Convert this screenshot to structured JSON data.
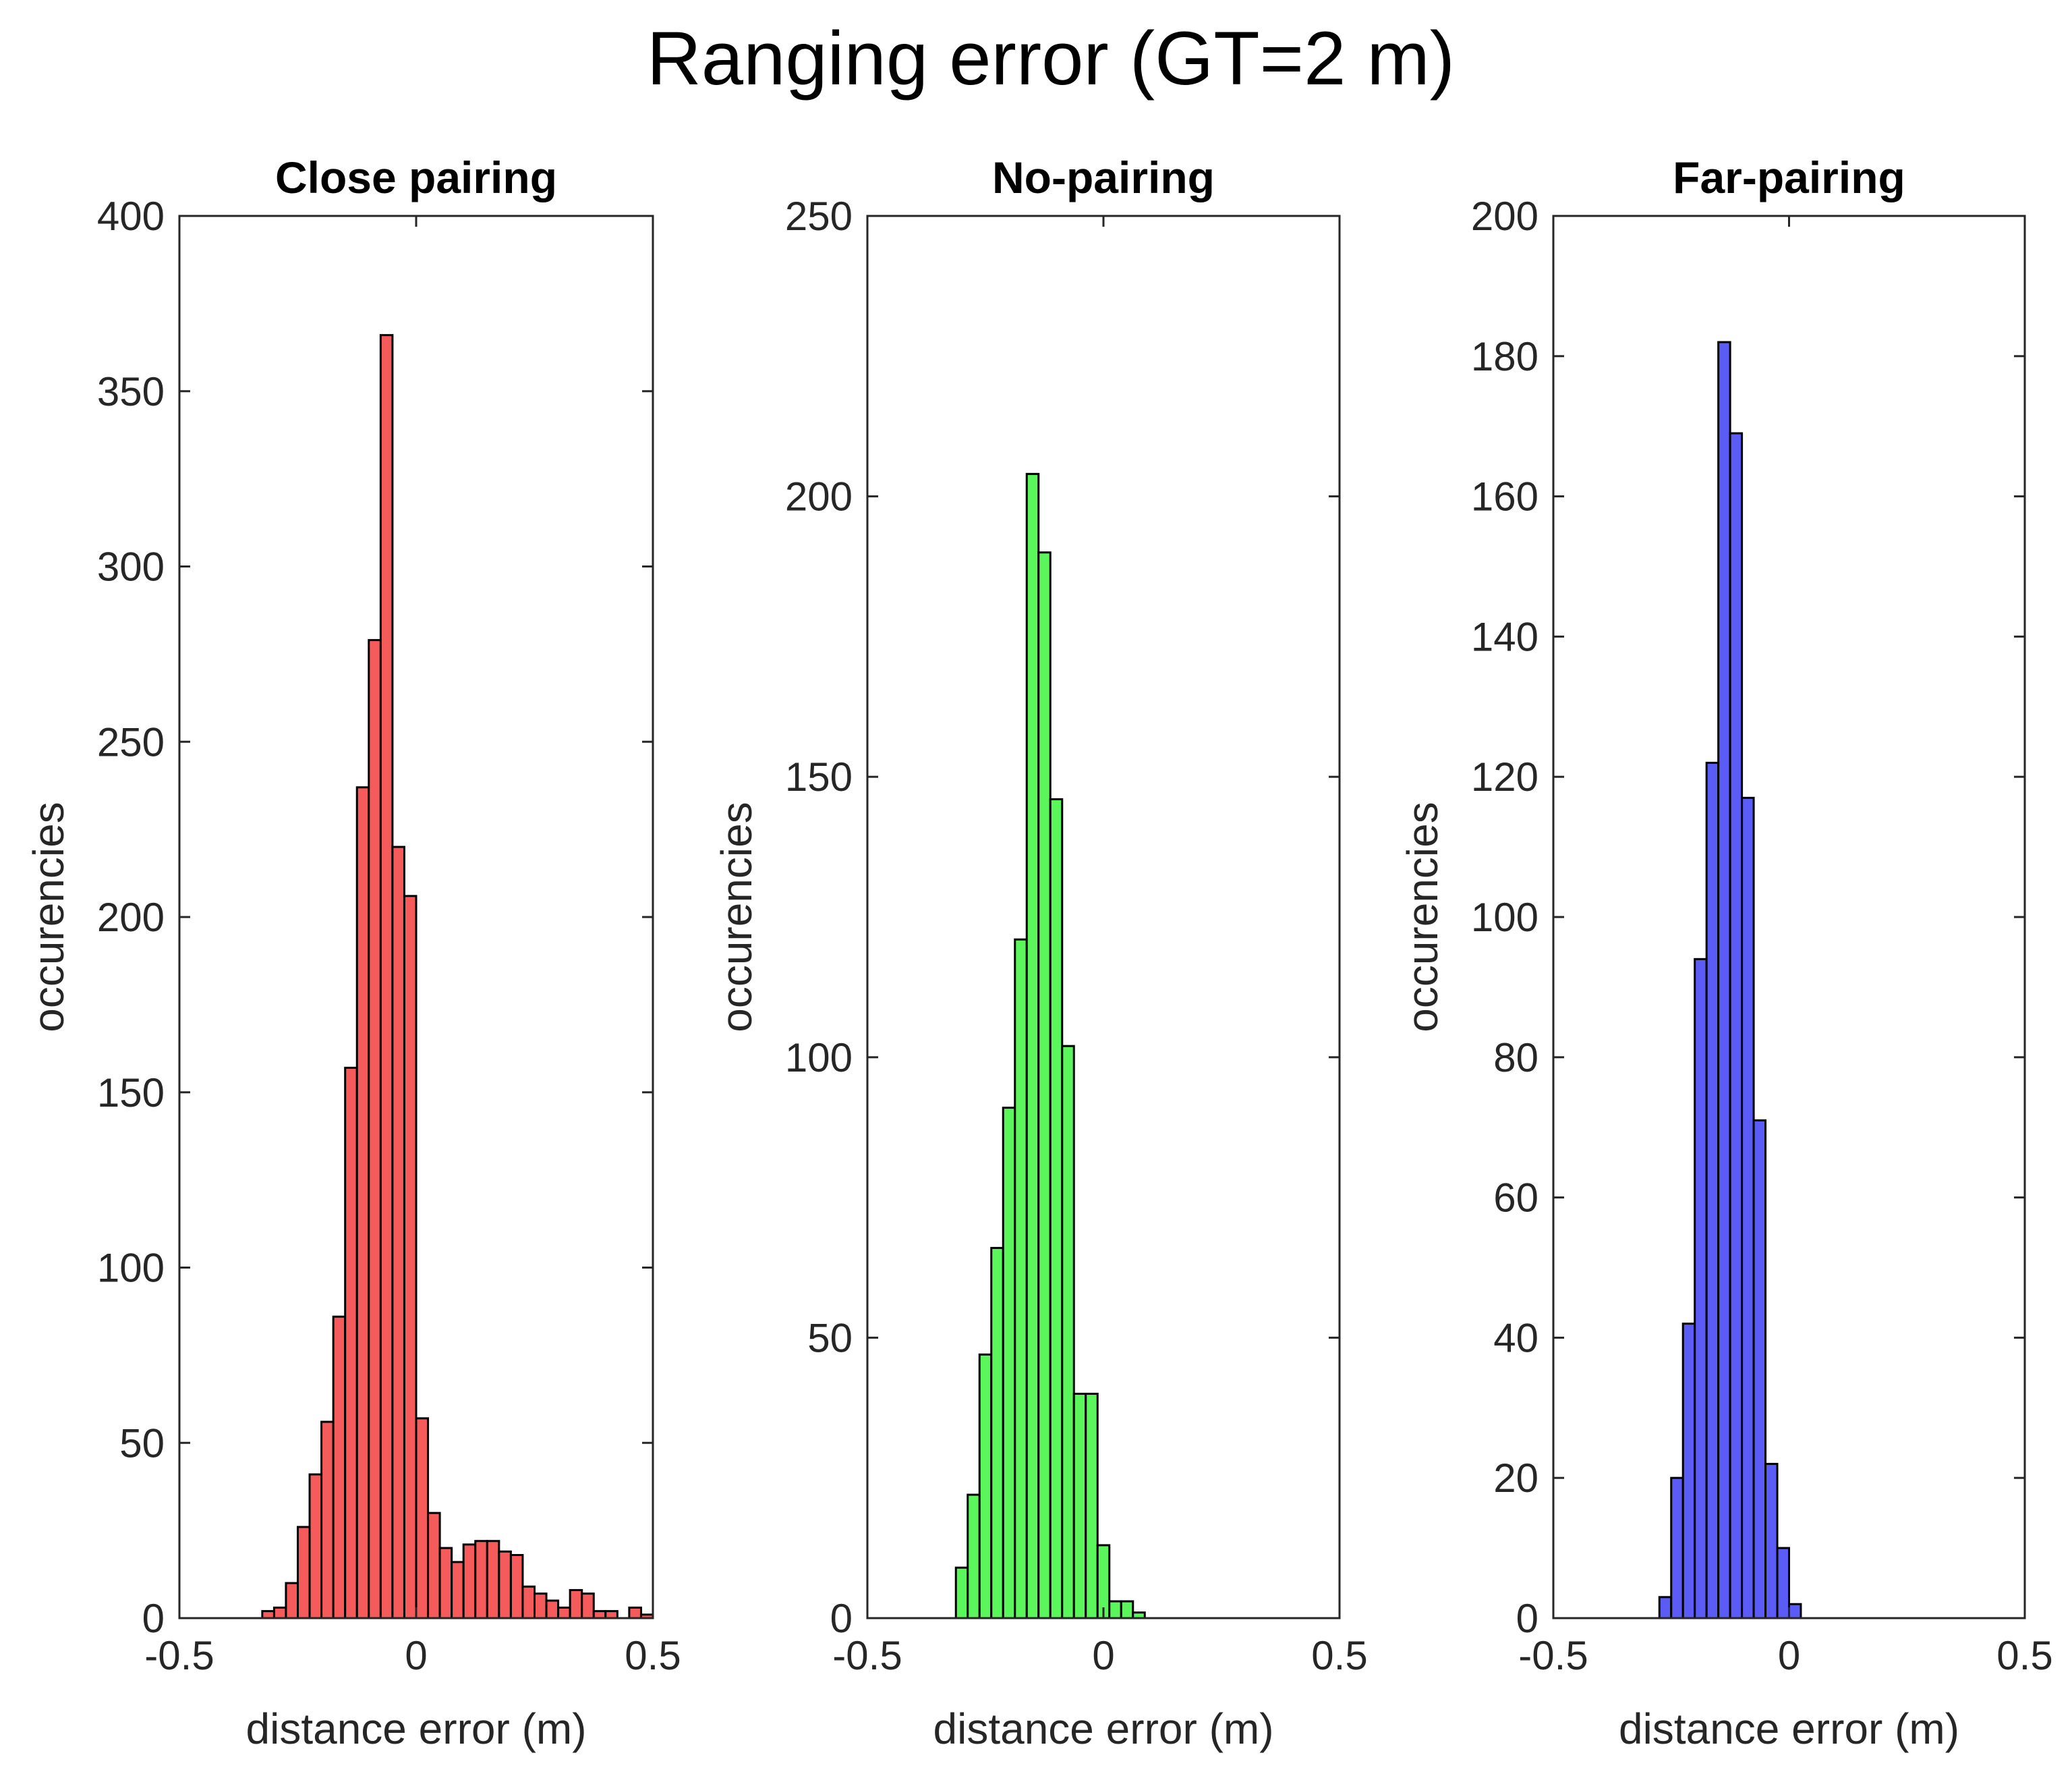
{
  "figure": {
    "title": "Ranging error (GT=2 m)"
  },
  "chart_data": [
    {
      "type": "bar",
      "title": "Close pairing",
      "xlabel": "distance error (m)",
      "ylabel": "occurencies",
      "xlim": [
        -0.5,
        0.5
      ],
      "ylim": [
        0,
        400
      ],
      "xticks": [
        -0.5,
        0,
        0.5
      ],
      "xtick_labels": [
        "-0.5",
        "0",
        "0.5"
      ],
      "yticks": [
        0,
        50,
        100,
        150,
        200,
        250,
        300,
        350,
        400
      ],
      "ytick_labels": [
        "0",
        "50",
        "100",
        "150",
        "200",
        "250",
        "300",
        "350",
        "400"
      ],
      "color": "#f65b5b",
      "bin_edges": [
        -0.325,
        -0.3,
        -0.275,
        -0.25,
        -0.225,
        -0.2,
        -0.175,
        -0.15,
        -0.125,
        -0.1,
        -0.075,
        -0.05,
        -0.025,
        0.0,
        0.025,
        0.05,
        0.075,
        0.1,
        0.125,
        0.15,
        0.175,
        0.2,
        0.225,
        0.25,
        0.275,
        0.3,
        0.325,
        0.35,
        0.375,
        0.4,
        0.425,
        0.45,
        0.475,
        0.5
      ],
      "values": [
        2,
        3,
        10,
        26,
        41,
        56,
        86,
        157,
        237,
        279,
        366,
        220,
        206,
        57,
        30,
        20,
        16,
        21,
        22,
        22,
        19,
        18,
        9,
        7,
        5,
        3,
        8,
        7,
        2,
        2,
        0,
        3,
        1
      ]
    },
    {
      "type": "bar",
      "title": "No-pairing",
      "xlabel": "distance error (m)",
      "ylabel": "occurencies",
      "xlim": [
        -0.5,
        0.5
      ],
      "ylim": [
        0,
        250
      ],
      "xticks": [
        -0.5,
        0,
        0.5
      ],
      "xtick_labels": [
        "-0.5",
        "0",
        "0.5"
      ],
      "yticks": [
        0,
        50,
        100,
        150,
        200,
        250
      ],
      "ytick_labels": [
        "0",
        "50",
        "100",
        "150",
        "200",
        "250"
      ],
      "color": "#5bf65b",
      "bin_edges": [
        -0.3125,
        -0.2875,
        -0.2625,
        -0.2375,
        -0.2125,
        -0.1875,
        -0.1625,
        -0.1375,
        -0.1125,
        -0.0875,
        -0.0625,
        -0.0375,
        -0.0125,
        0.0125,
        0.0375,
        0.0625,
        0.0875,
        0.1125
      ],
      "values": [
        9,
        22,
        47,
        66,
        91,
        121,
        204,
        190,
        146,
        102,
        40,
        40,
        13,
        3,
        3,
        1,
        0
      ]
    },
    {
      "type": "bar",
      "title": "Far-pairing",
      "xlabel": "distance error (m)",
      "ylabel": "occurencies",
      "xlim": [
        -0.5,
        0.5
      ],
      "ylim": [
        0,
        200
      ],
      "xticks": [
        -0.5,
        0,
        0.5
      ],
      "xtick_labels": [
        "-0.5",
        "0",
        "0.5"
      ],
      "yticks": [
        0,
        20,
        40,
        60,
        80,
        100,
        120,
        140,
        160,
        180,
        200
      ],
      "ytick_labels": [
        "0",
        "20",
        "40",
        "60",
        "80",
        "100",
        "120",
        "140",
        "160",
        "180",
        "200"
      ],
      "color": "#5b5bf6",
      "bin_edges": [
        -0.275,
        -0.25,
        -0.225,
        -0.2,
        -0.175,
        -0.15,
        -0.125,
        -0.1,
        -0.075,
        -0.05,
        -0.025,
        0.0,
        0.025
      ],
      "values": [
        3,
        20,
        42,
        94,
        122,
        182,
        169,
        117,
        71,
        22,
        10,
        2
      ]
    }
  ]
}
